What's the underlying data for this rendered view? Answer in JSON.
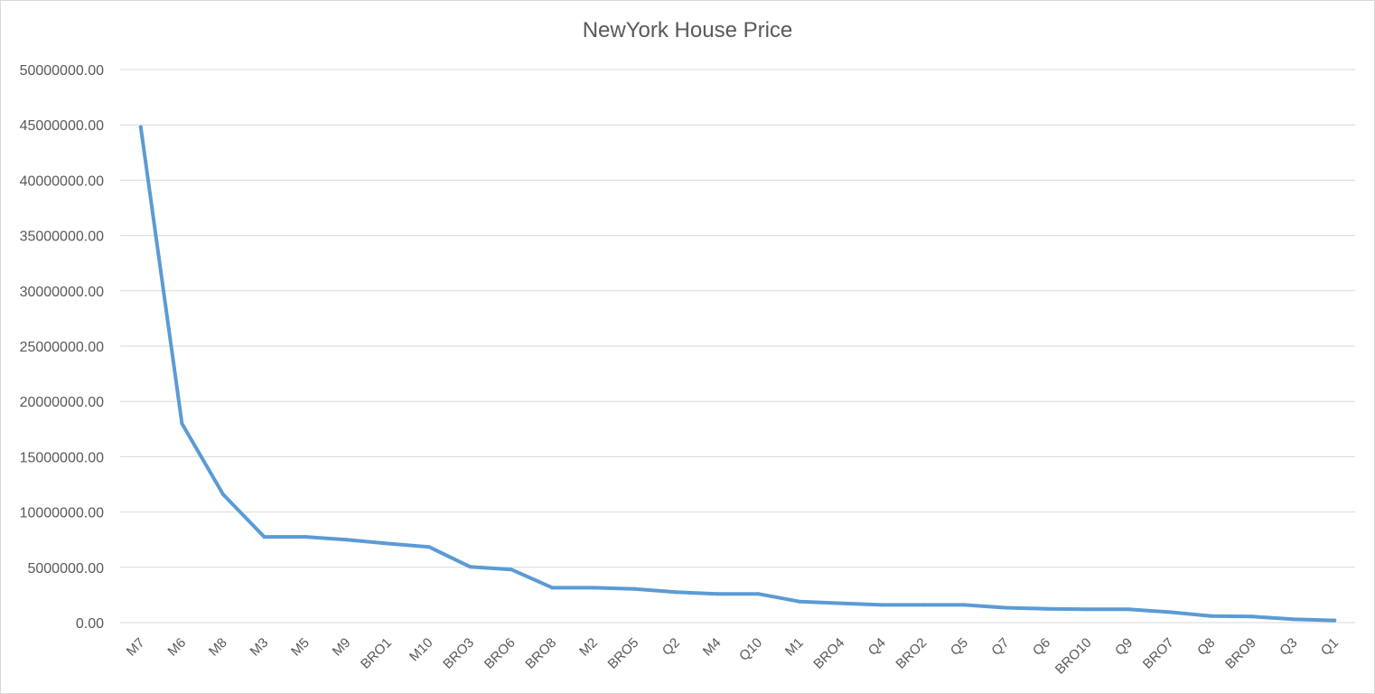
{
  "chart_data": {
    "type": "line",
    "title": "NewYork House Price",
    "xlabel": "",
    "ylabel": "",
    "ylim": [
      0,
      50000000
    ],
    "yticks": [
      "0.00",
      "5000000.00",
      "10000000.00",
      "15000000.00",
      "20000000.00",
      "25000000.00",
      "30000000.00",
      "35000000.00",
      "40000000.00",
      "45000000.00",
      "50000000.00"
    ],
    "grid": true,
    "legend": "none",
    "colors": {
      "line": "#5b9bd5",
      "grid": "#d9d9d9",
      "text": "#595959"
    },
    "categories": [
      "M7",
      "M6",
      "M8",
      "M3",
      "M5",
      "M9",
      "BRO1",
      "M10",
      "BRO3",
      "BRO6",
      "BRO8",
      "M2",
      "BRO5",
      "Q2",
      "M4",
      "Q10",
      "M1",
      "BRO4",
      "Q4",
      "BRO2",
      "Q5",
      "Q7",
      "Q6",
      "BRO10",
      "Q9",
      "BRO7",
      "Q8",
      "BRO9",
      "Q3",
      "Q1"
    ],
    "series": [
      {
        "values": [
          44800000,
          18000000,
          11600000,
          7750000,
          7750000,
          7500000,
          7150000,
          6850000,
          5050000,
          4800000,
          3150000,
          3150000,
          3050000,
          2750000,
          2600000,
          2600000,
          1900000,
          1750000,
          1600000,
          1600000,
          1600000,
          1350000,
          1250000,
          1200000,
          1200000,
          950000,
          600000,
          550000,
          300000,
          200000
        ]
      }
    ]
  }
}
